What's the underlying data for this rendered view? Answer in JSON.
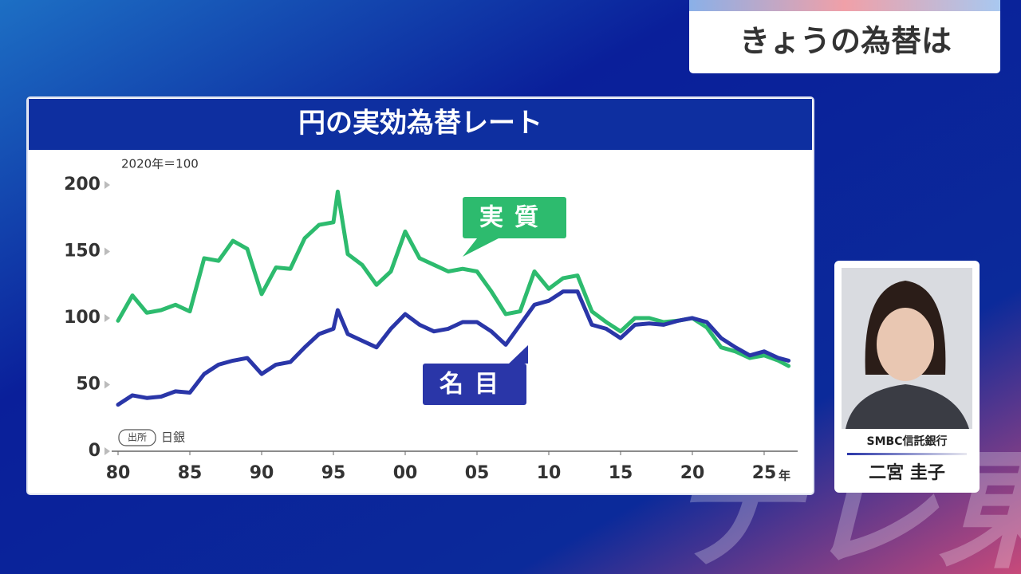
{
  "header": {
    "title": "きょうの為替は"
  },
  "chart_data": {
    "type": "line",
    "title": "円の実効為替レート",
    "note": "2020年＝100",
    "source_label": "出所",
    "source": "日銀",
    "x_unit": "年",
    "x": [
      1980,
      1981,
      1982,
      1983,
      1984,
      1985,
      1986,
      1987,
      1988,
      1989,
      1990,
      1991,
      1992,
      1993,
      1994,
      1995,
      1995.3,
      1996,
      1997,
      1998,
      1999,
      2000,
      2001,
      2002,
      2003,
      2004,
      2005,
      2006,
      2007,
      2008,
      2009,
      2010,
      2011,
      2012,
      2013,
      2014,
      2015,
      2016,
      2017,
      2018,
      2019,
      2020,
      2021,
      2022,
      2023,
      2024,
      2025,
      2026,
      2026.7
    ],
    "xlim": [
      1980,
      2027.5
    ],
    "xticks": [
      {
        "value": 1980,
        "label": "80"
      },
      {
        "value": 1985,
        "label": "85"
      },
      {
        "value": 1990,
        "label": "90"
      },
      {
        "value": 1995,
        "label": "95"
      },
      {
        "value": 2000,
        "label": "00"
      },
      {
        "value": 2005,
        "label": "05"
      },
      {
        "value": 2010,
        "label": "10"
      },
      {
        "value": 2015,
        "label": "15"
      },
      {
        "value": 2020,
        "label": "20"
      },
      {
        "value": 2025,
        "label": "25"
      }
    ],
    "ylim": [
      0,
      200
    ],
    "yticks": [
      0,
      50,
      100,
      150,
      200
    ],
    "series": [
      {
        "name": "実質",
        "color": "#2dbb6e",
        "values": [
          98,
          117,
          104,
          106,
          110,
          105,
          145,
          143,
          158,
          152,
          118,
          138,
          137,
          160,
          170,
          172,
          195,
          148,
          140,
          125,
          135,
          165,
          145,
          140,
          135,
          137,
          135,
          120,
          103,
          105,
          135,
          122,
          130,
          132,
          105,
          97,
          90,
          100,
          100,
          97,
          98,
          100,
          93,
          78,
          75,
          70,
          72,
          68,
          64
        ]
      },
      {
        "name": "名目",
        "color": "#2a36a8",
        "values": [
          35,
          42,
          40,
          41,
          45,
          44,
          58,
          65,
          68,
          70,
          58,
          65,
          67,
          78,
          88,
          92,
          106,
          88,
          83,
          78,
          92,
          103,
          95,
          90,
          92,
          97,
          97,
          90,
          80,
          95,
          110,
          113,
          120,
          120,
          95,
          92,
          85,
          95,
          96,
          95,
          98,
          100,
          97,
          85,
          78,
          72,
          75,
          70,
          68
        ]
      }
    ]
  },
  "guest": {
    "company": "SMBC信託銀行",
    "name": "二宮 圭子"
  },
  "watermark": "テレ東"
}
